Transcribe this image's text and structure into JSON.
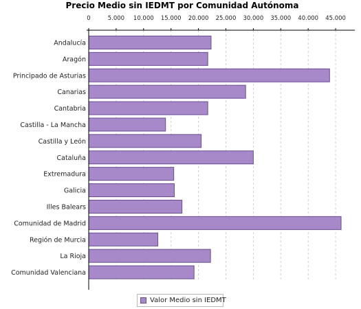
{
  "colors": {
    "bar_fill": "#a788c9",
    "bar_stroke": "#6a4c93",
    "grid": "#cfcfcf",
    "axis": "#000000"
  },
  "chart_data": {
    "type": "bar",
    "orientation": "horizontal",
    "title": "Precio Medio sin IEDMT por Comunidad Autónoma",
    "xlabel": "",
    "ylabel": "",
    "xlim": [
      0,
      48500
    ],
    "xticks": [
      0,
      5000,
      10000,
      15000,
      20000,
      25000,
      30000,
      35000,
      40000,
      45000
    ],
    "xtick_labels": [
      "0",
      "5.000",
      "10.000",
      "15.000",
      "20.000",
      "25.000",
      "30.000",
      "35.000",
      "40.000",
      "45.000"
    ],
    "tick_position": "top",
    "grid": true,
    "legend_position": "bottom",
    "categories": [
      "Andalucía",
      "Aragón",
      "Principado de Asturias",
      "Canarias",
      "Cantabria",
      "Castilla - La Mancha",
      "Castilla y León",
      "Cataluña",
      "Extremadura",
      "Galicia",
      "Illes Balears",
      "Comunidad de Madrid",
      "Región de Murcia",
      "La Rioja",
      "Comunidad Valenciana"
    ],
    "series": [
      {
        "name": "Valor Medio sin IEDMT",
        "values": [
          22300,
          21700,
          43900,
          28600,
          21700,
          14000,
          20500,
          30000,
          15500,
          15600,
          17000,
          46000,
          12600,
          22200,
          19200
        ]
      }
    ]
  }
}
